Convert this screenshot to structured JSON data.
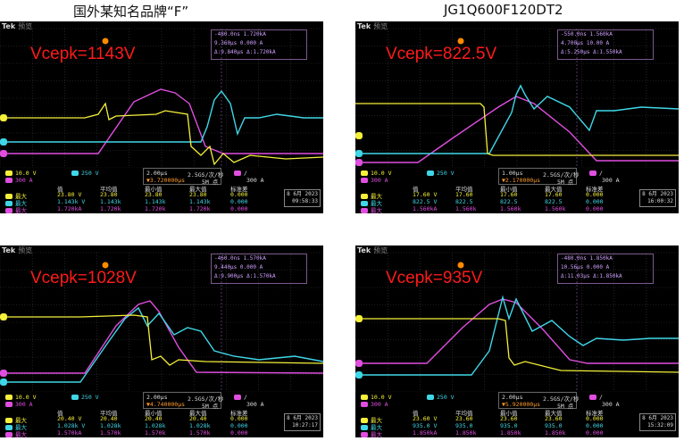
{
  "titles": {
    "left": "国外某知名品牌“F”",
    "right": "JG1Q600F120DT2"
  },
  "colors": {
    "ch1": "#f5f03a",
    "ch2": "#3fd7e8",
    "ch3": "#e04ee0",
    "label": "#ff1a1a"
  },
  "common": {
    "brand": "Tek",
    "brand_sub": "预览",
    "ch1_scale": "10.0 V",
    "ch2_scale": "250 V",
    "ch3_scale": "300 A",
    "hdr_value": "值",
    "hdr_mean": "平均值",
    "hdr_min": "最小值",
    "hdr_max": "最大值",
    "hdr_std": "标准差",
    "row_label": "最大",
    "trigger": "300 A",
    "date": "8 6月 2023"
  },
  "scopes": [
    {
      "label": "Vcepk=1143V",
      "cursor": [
        "-480.0ns",
        "1.720kA",
        "9.360μs",
        "0.000 A",
        "Δ:9.840μs",
        "Δ:1.720kA"
      ],
      "timebase": "2.00μs",
      "trig_pos": "▼3.720000μs",
      "rate": "2.5GS/次/秒",
      "points": "5M 点",
      "row1": [
        "23.80 V",
        "23.80",
        "23.80",
        "23.80",
        "0.000"
      ],
      "row2": [
        "1.143k V",
        "1.143k",
        "1.143k",
        "1.143k",
        "0.000"
      ],
      "row3": [
        "1.720kA",
        "1.720k",
        "1.720k",
        "1.720k",
        "0.000"
      ],
      "time": "09:58:33"
    },
    {
      "label": "Vcepk=822.5V",
      "cursor": [
        "-550.0ns",
        "1.560kA",
        "4.700μs",
        "10.00 A",
        "Δ:5.250μs",
        "Δ:1.550kA"
      ],
      "timebase": "1.00μs",
      "trig_pos": "▼2.170000μs",
      "rate": "2.5GS/次/秒",
      "points": "5M 点",
      "row1": [
        "17.60 V",
        "17.60",
        "17.60",
        "17.60",
        "0.000"
      ],
      "row2": [
        "822.5 V",
        "822.5",
        "822.5",
        "822.5",
        "0.000"
      ],
      "row3": [
        "1.560kA",
        "1.560k",
        "1.560k",
        "1.560k",
        "0.000"
      ],
      "time": "16:00:32"
    },
    {
      "label": "Vcepk=1028V",
      "cursor": [
        "-460.0ns",
        "1.570kA",
        "9.440μs",
        "0.000 A",
        "Δ:9.900μs",
        "Δ:1.570kA"
      ],
      "timebase": "2.00μs",
      "trig_pos": "▼4.740000μs",
      "rate": "2.5GS/次/秒",
      "points": "5M 点",
      "row1": [
        "20.40 V",
        "20.40",
        "20.40",
        "20.40",
        "0.000"
      ],
      "row2": [
        "1.028k V",
        "1.028k",
        "1.028k",
        "1.028k",
        "0.000"
      ],
      "row3": [
        "1.570kA",
        "1.570k",
        "1.570k",
        "1.570k",
        "0.000"
      ],
      "time": "10:27:17"
    },
    {
      "label": "Vcepk=935V",
      "cursor": [
        "-480.0ns",
        "1.850kA",
        "10.56μs",
        "0.000 A",
        "Δ:11.03μs",
        "Δ:1.850kA"
      ],
      "timebase": "2.00μs",
      "trig_pos": "▼5.920000μs",
      "rate": "2.5GS/次/秒",
      "points": "5M 点",
      "row1": [
        "23.60 V",
        "23.60",
        "23.60",
        "23.60",
        "0.000"
      ],
      "row2": [
        "935.0 V",
        "935.0",
        "935.0",
        "935.0",
        "0.000"
      ],
      "row3": [
        "1.850kA",
        "1.850k",
        "1.850k",
        "1.850k",
        "0.000"
      ],
      "time": "15:32:09"
    }
  ]
}
